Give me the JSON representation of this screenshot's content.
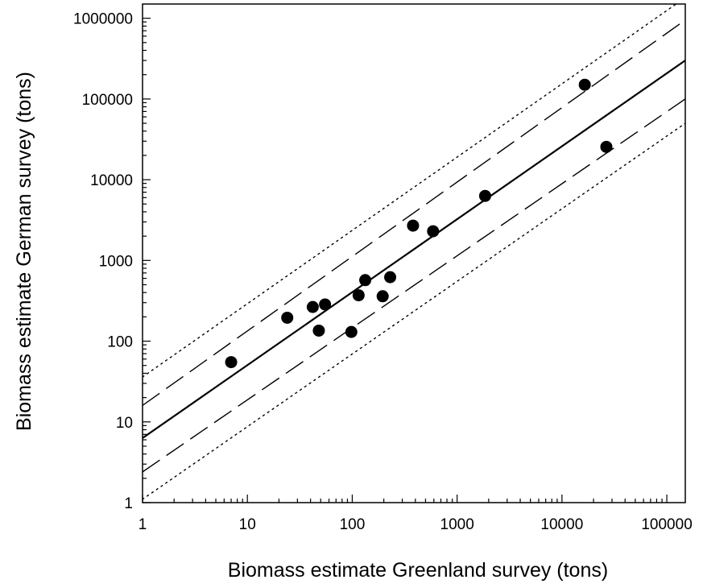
{
  "chart_data": {
    "type": "scatter",
    "xlabel": "Biomass estimate Greenland survey (tons)",
    "ylabel": "Biomass estimate German survey (tons)",
    "xscale": "log",
    "yscale": "log",
    "xlim": [
      1,
      150000
    ],
    "ylim": [
      1,
      1500000
    ],
    "x_ticks": [
      "1",
      "10",
      "100",
      "1000",
      "10000",
      "100000"
    ],
    "y_ticks": [
      "1",
      "10",
      "100",
      "1000",
      "10000",
      "100000",
      "1000000"
    ],
    "grid": false,
    "legend": "none",
    "points": [
      {
        "x": 7,
        "y": 55
      },
      {
        "x": 24,
        "y": 195
      },
      {
        "x": 42,
        "y": 265
      },
      {
        "x": 48,
        "y": 135
      },
      {
        "x": 55,
        "y": 285
      },
      {
        "x": 98,
        "y": 130
      },
      {
        "x": 115,
        "y": 370
      },
      {
        "x": 133,
        "y": 570
      },
      {
        "x": 195,
        "y": 360
      },
      {
        "x": 230,
        "y": 620
      },
      {
        "x": 380,
        "y": 2700
      },
      {
        "x": 590,
        "y": 2300
      },
      {
        "x": 1850,
        "y": 6300
      },
      {
        "x": 16500,
        "y": 150000
      },
      {
        "x": 26500,
        "y": 25500
      }
    ],
    "lines": [
      {
        "style": "solid",
        "x": [
          1,
          150000
        ],
        "y": [
          6.3,
          300000
        ]
      },
      {
        "style": "long-dash",
        "x": [
          1,
          150000
        ],
        "y": [
          16,
          950000
        ]
      },
      {
        "style": "long-dash",
        "x": [
          1,
          150000
        ],
        "y": [
          2.4,
          100000
        ]
      },
      {
        "style": "dotted",
        "x": [
          1,
          150000
        ],
        "y": [
          36,
          1800000
        ]
      },
      {
        "style": "dotted",
        "x": [
          1,
          150000
        ],
        "y": [
          1.1,
          50000
        ]
      }
    ]
  }
}
